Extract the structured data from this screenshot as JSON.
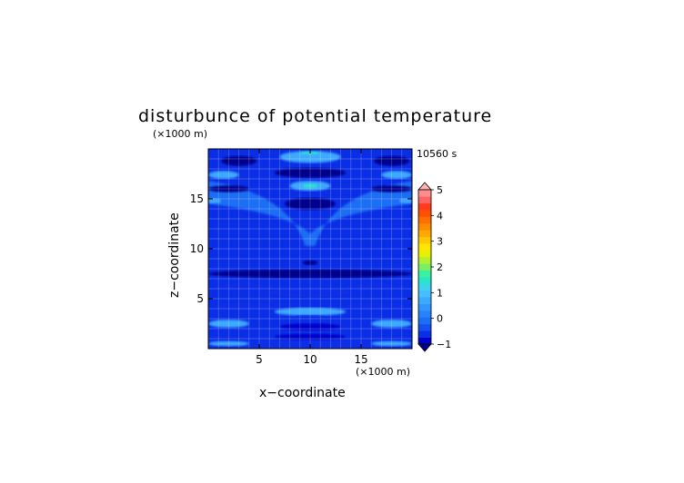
{
  "chart_data": {
    "type": "heatmap",
    "title": "disturbunce of potential temperature",
    "time_label": "10560 s",
    "xlabel": "x−coordinate",
    "ylabel": "z−coordinate",
    "x_unit": "(×1000 m)",
    "y_unit": "(×1000 m)",
    "xlim": [
      0,
      20
    ],
    "ylim": [
      0,
      20
    ],
    "x_ticks": [
      5,
      10,
      15
    ],
    "y_ticks": [
      5,
      10,
      15
    ],
    "x_tick_labels": [
      "5",
      "10",
      "15"
    ],
    "y_tick_labels": [
      "5",
      "10",
      "15"
    ],
    "grid": true,
    "colorbar": {
      "min": -1,
      "max": 5,
      "step": 0.25,
      "tick_labels": [
        "−1",
        "0",
        "1",
        "2",
        "3",
        "4",
        "5"
      ],
      "colors": [
        "#00008c",
        "#0000c8",
        "#0a2ee6",
        "#1450f0",
        "#1e6ef5",
        "#2882fa",
        "#3296ff",
        "#3caaff",
        "#46beff",
        "#3cd2f0",
        "#28e6c8",
        "#3cf0a0",
        "#78f064",
        "#b4f032",
        "#e6f000",
        "#ffe600",
        "#ffc800",
        "#ffaa00",
        "#ff8c00",
        "#ff6e00",
        "#ff5000",
        "#ff3c1e",
        "#ff6464",
        "#ff8c8c",
        "#ffb4b4"
      ]
    },
    "field_features": [
      {
        "x": 3,
        "z": 18.8,
        "width": 3.5,
        "height": 1.0,
        "value": -0.9
      },
      {
        "x": 18,
        "z": 18.8,
        "width": 3.5,
        "height": 1.0,
        "value": -0.9
      },
      {
        "x": 10,
        "z": 19.2,
        "width": 6,
        "height": 1.2,
        "value": 0.9
      },
      {
        "x": 10,
        "z": 19.6,
        "width": 2,
        "height": 0.3,
        "value": 1.6
      },
      {
        "x": 1.5,
        "z": 17.4,
        "width": 3,
        "height": 0.8,
        "value": 0.9
      },
      {
        "x": 18.5,
        "z": 17.4,
        "width": 3,
        "height": 0.8,
        "value": 0.9
      },
      {
        "x": 10,
        "z": 17.6,
        "width": 7,
        "height": 1.0,
        "value": -0.8
      },
      {
        "x": 2,
        "z": 16.0,
        "width": 4,
        "height": 0.7,
        "value": -1.0
      },
      {
        "x": 18,
        "z": 16.0,
        "width": 4,
        "height": 0.7,
        "value": -1.0
      },
      {
        "x": 10,
        "z": 16.3,
        "width": 4,
        "height": 1.0,
        "value": 0.9
      },
      {
        "x": 10,
        "z": 16.3,
        "width": 1.5,
        "height": 0.4,
        "value": 1.7
      },
      {
        "x": 0.5,
        "z": 14.8,
        "width": 1.5,
        "height": 0.5,
        "value": 0.9
      },
      {
        "x": 19.5,
        "z": 14.8,
        "width": 1.5,
        "height": 0.5,
        "value": 0.9
      },
      {
        "x": 10,
        "z": 14.5,
        "width": 5,
        "height": 1.2,
        "value": -0.8
      },
      {
        "x": 10,
        "z": 8.6,
        "width": 1.5,
        "height": 0.5,
        "value": -1.0
      },
      {
        "x": 10,
        "z": 7.5,
        "width": 20,
        "height": 0.9,
        "value": -0.8
      },
      {
        "x": 10,
        "z": 7.4,
        "width": 10,
        "height": 0.4,
        "value": -1.0
      },
      {
        "x": 3.5,
        "z": 6.2,
        "width": 6,
        "height": 0.6,
        "value": -0.4
      },
      {
        "x": 16.5,
        "z": 6.2,
        "width": 6,
        "height": 0.6,
        "value": -0.4
      },
      {
        "x": 10,
        "z": 5.6,
        "width": 8,
        "height": 0.9,
        "value": -0.35
      },
      {
        "x": 3.5,
        "z": 4.2,
        "width": 6,
        "height": 0.7,
        "value": -0.35
      },
      {
        "x": 16.5,
        "z": 4.2,
        "width": 6,
        "height": 0.7,
        "value": -0.35
      },
      {
        "x": 10,
        "z": 3.7,
        "width": 7,
        "height": 0.8,
        "value": 0.8
      },
      {
        "x": 10,
        "z": 3.2,
        "width": 3,
        "height": 0.3,
        "value": -0.5
      },
      {
        "x": 2,
        "z": 2.5,
        "width": 4,
        "height": 0.8,
        "value": 0.9
      },
      {
        "x": 18,
        "z": 2.5,
        "width": 4,
        "height": 0.8,
        "value": 0.9
      },
      {
        "x": 10,
        "z": 2.2,
        "width": 6,
        "height": 0.7,
        "value": -0.6
      },
      {
        "x": 10,
        "z": 1.2,
        "width": 7,
        "height": 0.6,
        "value": -0.6
      },
      {
        "x": 10,
        "z": 0.4,
        "width": 20,
        "height": 0.8,
        "value": -0.3
      },
      {
        "x": 2,
        "z": 0.5,
        "width": 4,
        "height": 0.5,
        "value": 0.9
      },
      {
        "x": 18,
        "z": 0.5,
        "width": 4,
        "height": 0.5,
        "value": 0.9
      }
    ]
  }
}
